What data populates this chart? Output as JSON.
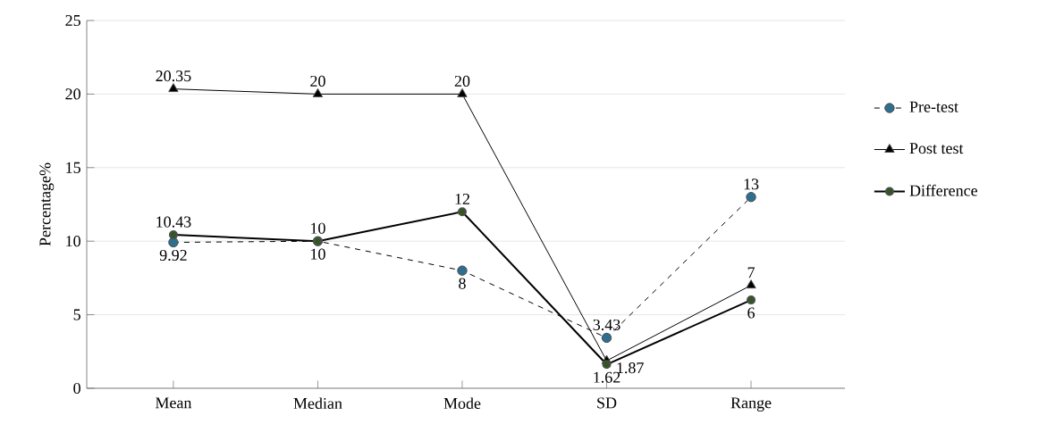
{
  "chart_data": {
    "type": "line",
    "ylabel": "Percentage%",
    "categories": [
      "Mean",
      "Median",
      "Mode",
      "SD",
      "Range"
    ],
    "series": [
      {
        "name": "Pre-test",
        "color": "#2e6f8e",
        "marker": "circle",
        "line_style": "dashed",
        "values": [
          9.92,
          10,
          8,
          3.43,
          13
        ]
      },
      {
        "name": "Post test",
        "color": "#000000",
        "marker": "triangle",
        "line_style": "solid",
        "values": [
          20.35,
          20,
          20,
          1.87,
          7
        ]
      },
      {
        "name": "Difference",
        "color": "#2d5a1b",
        "marker": "circle",
        "line_style": "solid",
        "values": [
          10.43,
          10,
          12,
          1.62,
          6
        ]
      }
    ],
    "ylim": [
      0,
      25
    ],
    "yticks": [
      0,
      5,
      10,
      15,
      20,
      25
    ],
    "grid": "y",
    "legend": "right",
    "data_labels": true
  }
}
